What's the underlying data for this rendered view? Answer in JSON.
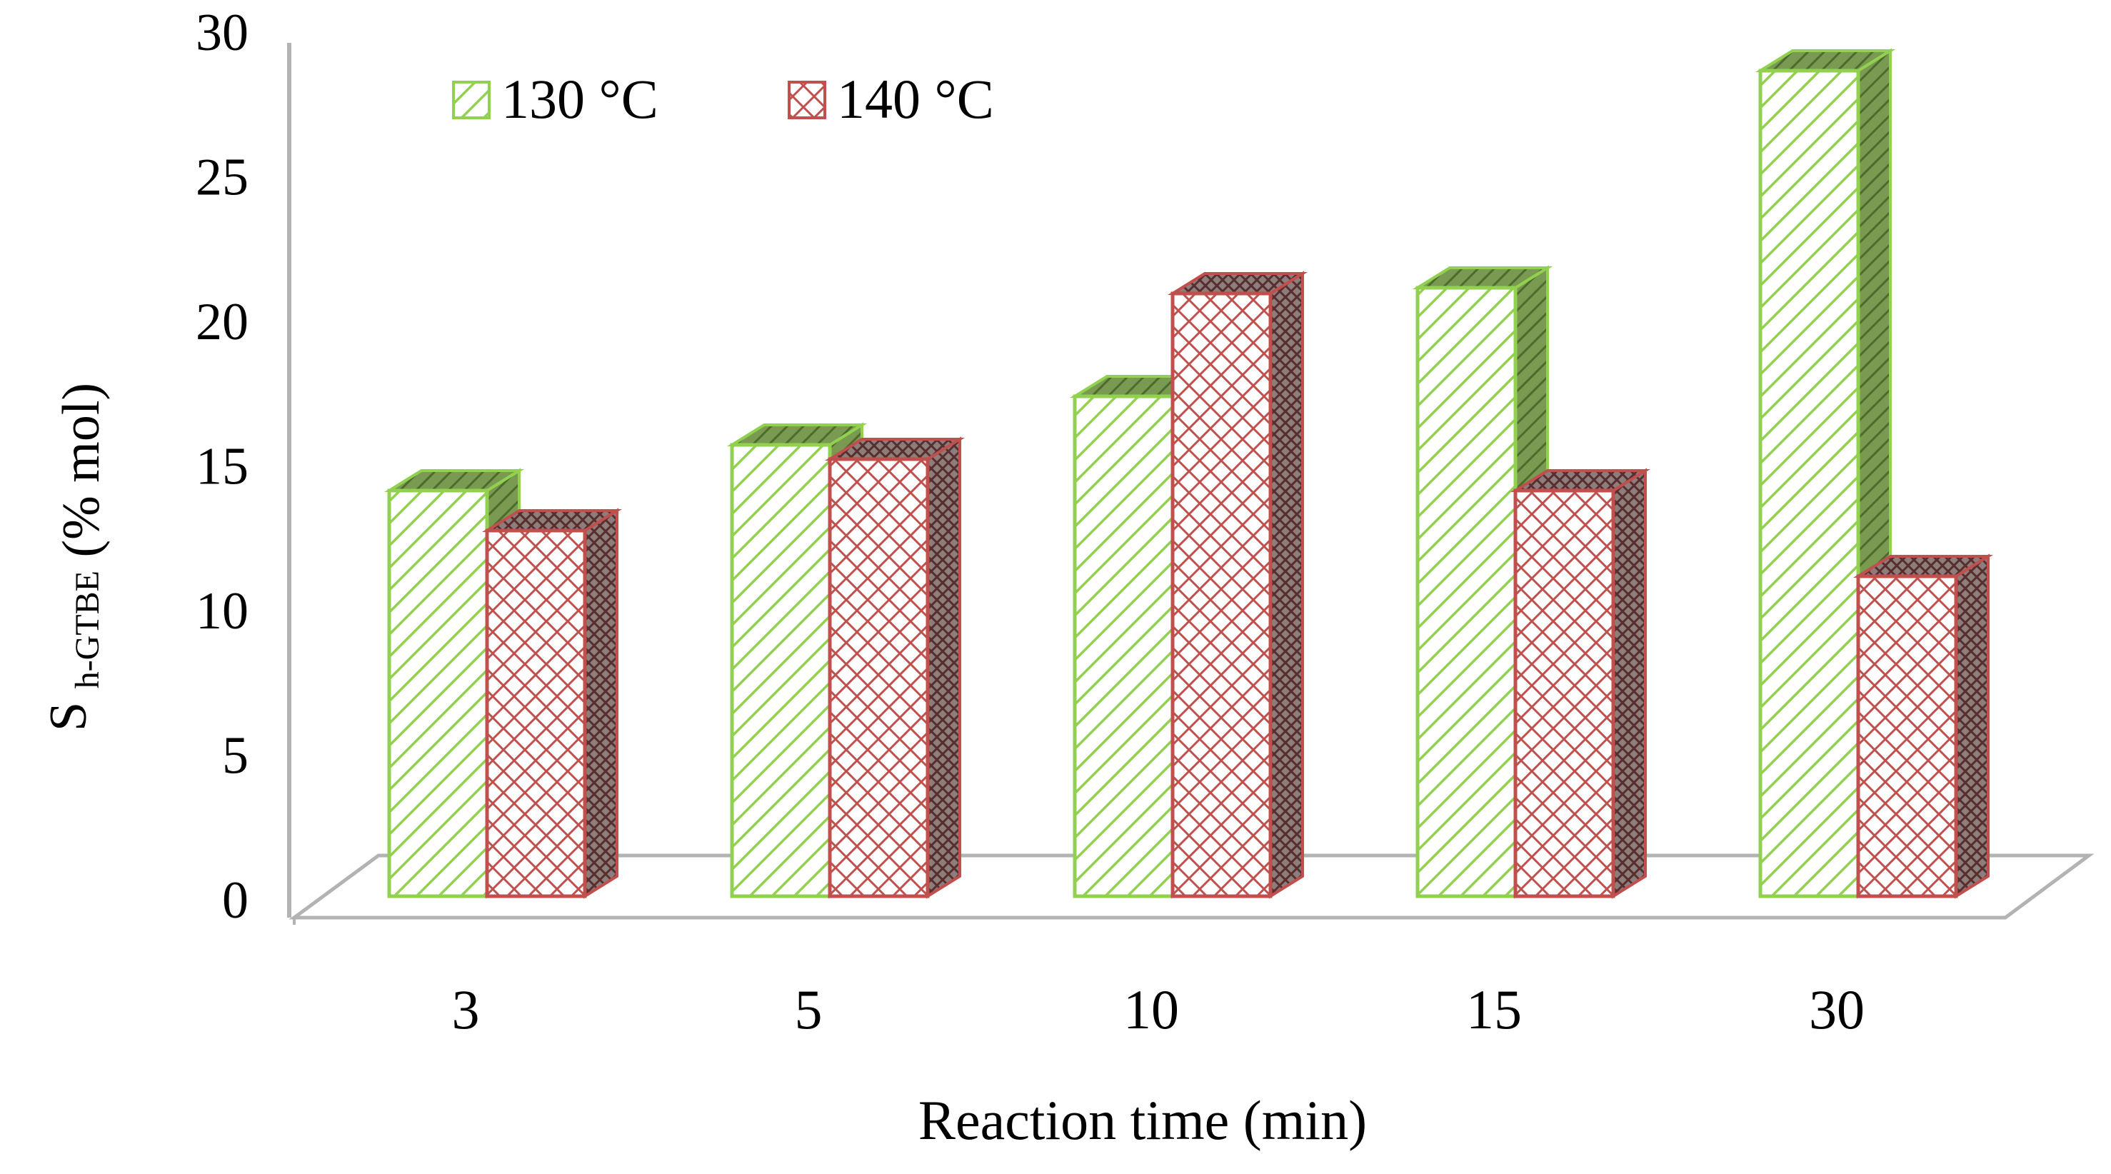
{
  "chart_data": {
    "type": "bar",
    "style": "3d-clustered",
    "title": "",
    "categories": [
      "3",
      "5",
      "10",
      "15",
      "30"
    ],
    "series": [
      {
        "name": "130 °C",
        "values": [
          14.2,
          15.8,
          17.5,
          21.3,
          28.9
        ],
        "color": "#92d050",
        "pattern": "diagonal-hatch"
      },
      {
        "name": "140 °C",
        "values": [
          12.8,
          15.3,
          21.1,
          14.2,
          11.2
        ],
        "color": "#c0504d",
        "pattern": "diamond-grid"
      }
    ],
    "xlabel": "Reaction time (min)",
    "ylabel_main": "S",
    "ylabel_sub": "h-GTBE",
    "ylabel_unit": "(% mol)",
    "ylim": [
      0,
      30
    ],
    "yticks": [
      0,
      5,
      10,
      15,
      20,
      25,
      30
    ],
    "legend_position": "top-left",
    "grid": false
  }
}
